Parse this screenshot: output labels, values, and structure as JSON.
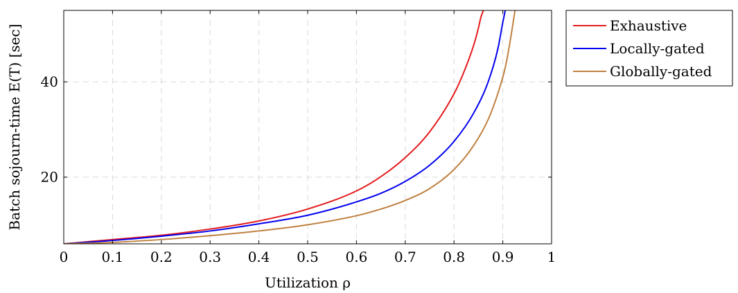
{
  "chart_data": {
    "type": "line",
    "xlabel": "Utilization ρ",
    "ylabel": "Batch sojourn-time E(T)  [sec]",
    "xlim": [
      0,
      1
    ],
    "ylim": [
      6,
      55
    ],
    "xticks": [
      0,
      0.1,
      0.2,
      0.3,
      0.4,
      0.5,
      0.6,
      0.7,
      0.8,
      0.9,
      1
    ],
    "xtick_labels": [
      "0",
      "0.1",
      "0.2",
      "0.3",
      "0.4",
      "0.5",
      "0.6",
      "0.7",
      "0.8",
      "0.9",
      "1"
    ],
    "yticks": [
      20,
      40
    ],
    "ytick_labels": [
      "20",
      "40"
    ],
    "grid": true,
    "legend_position": "outside-right",
    "series": [
      {
        "name": "Exhaustive",
        "color": "#e41a1c",
        "x": [
          0,
          0.1,
          0.2,
          0.3,
          0.4,
          0.5,
          0.6,
          0.65,
          0.7,
          0.75,
          0.8,
          0.82,
          0.84,
          0.85,
          0.855,
          0.86
        ],
        "y": [
          6,
          6.9,
          7.8,
          9.1,
          10.8,
          13.3,
          17.1,
          20.1,
          24.1,
          29.5,
          37.5,
          42.0,
          47.6,
          51.3,
          53.5,
          55.0
        ]
      },
      {
        "name": "Locally-gated",
        "color": "#0000ee",
        "x": [
          0,
          0.1,
          0.2,
          0.3,
          0.4,
          0.5,
          0.6,
          0.65,
          0.7,
          0.75,
          0.8,
          0.84,
          0.87,
          0.89,
          0.9,
          0.905
        ],
        "y": [
          6,
          6.7,
          7.6,
          8.7,
          10.2,
          12.0,
          14.8,
          16.6,
          19.1,
          22.5,
          27.5,
          33.4,
          40.0,
          47.0,
          52.5,
          55.0
        ]
      },
      {
        "name": "Globally-gated",
        "color": "#bf8040",
        "x": [
          0,
          0.1,
          0.2,
          0.3,
          0.4,
          0.5,
          0.6,
          0.65,
          0.7,
          0.75,
          0.8,
          0.84,
          0.87,
          0.89,
          0.905,
          0.915,
          0.925
        ],
        "y": [
          6,
          6.3,
          6.9,
          7.7,
          8.7,
          10.0,
          11.9,
          13.3,
          15.1,
          17.6,
          21.6,
          26.6,
          32.1,
          37.6,
          43.0,
          48.5,
          55.0
        ]
      }
    ]
  }
}
